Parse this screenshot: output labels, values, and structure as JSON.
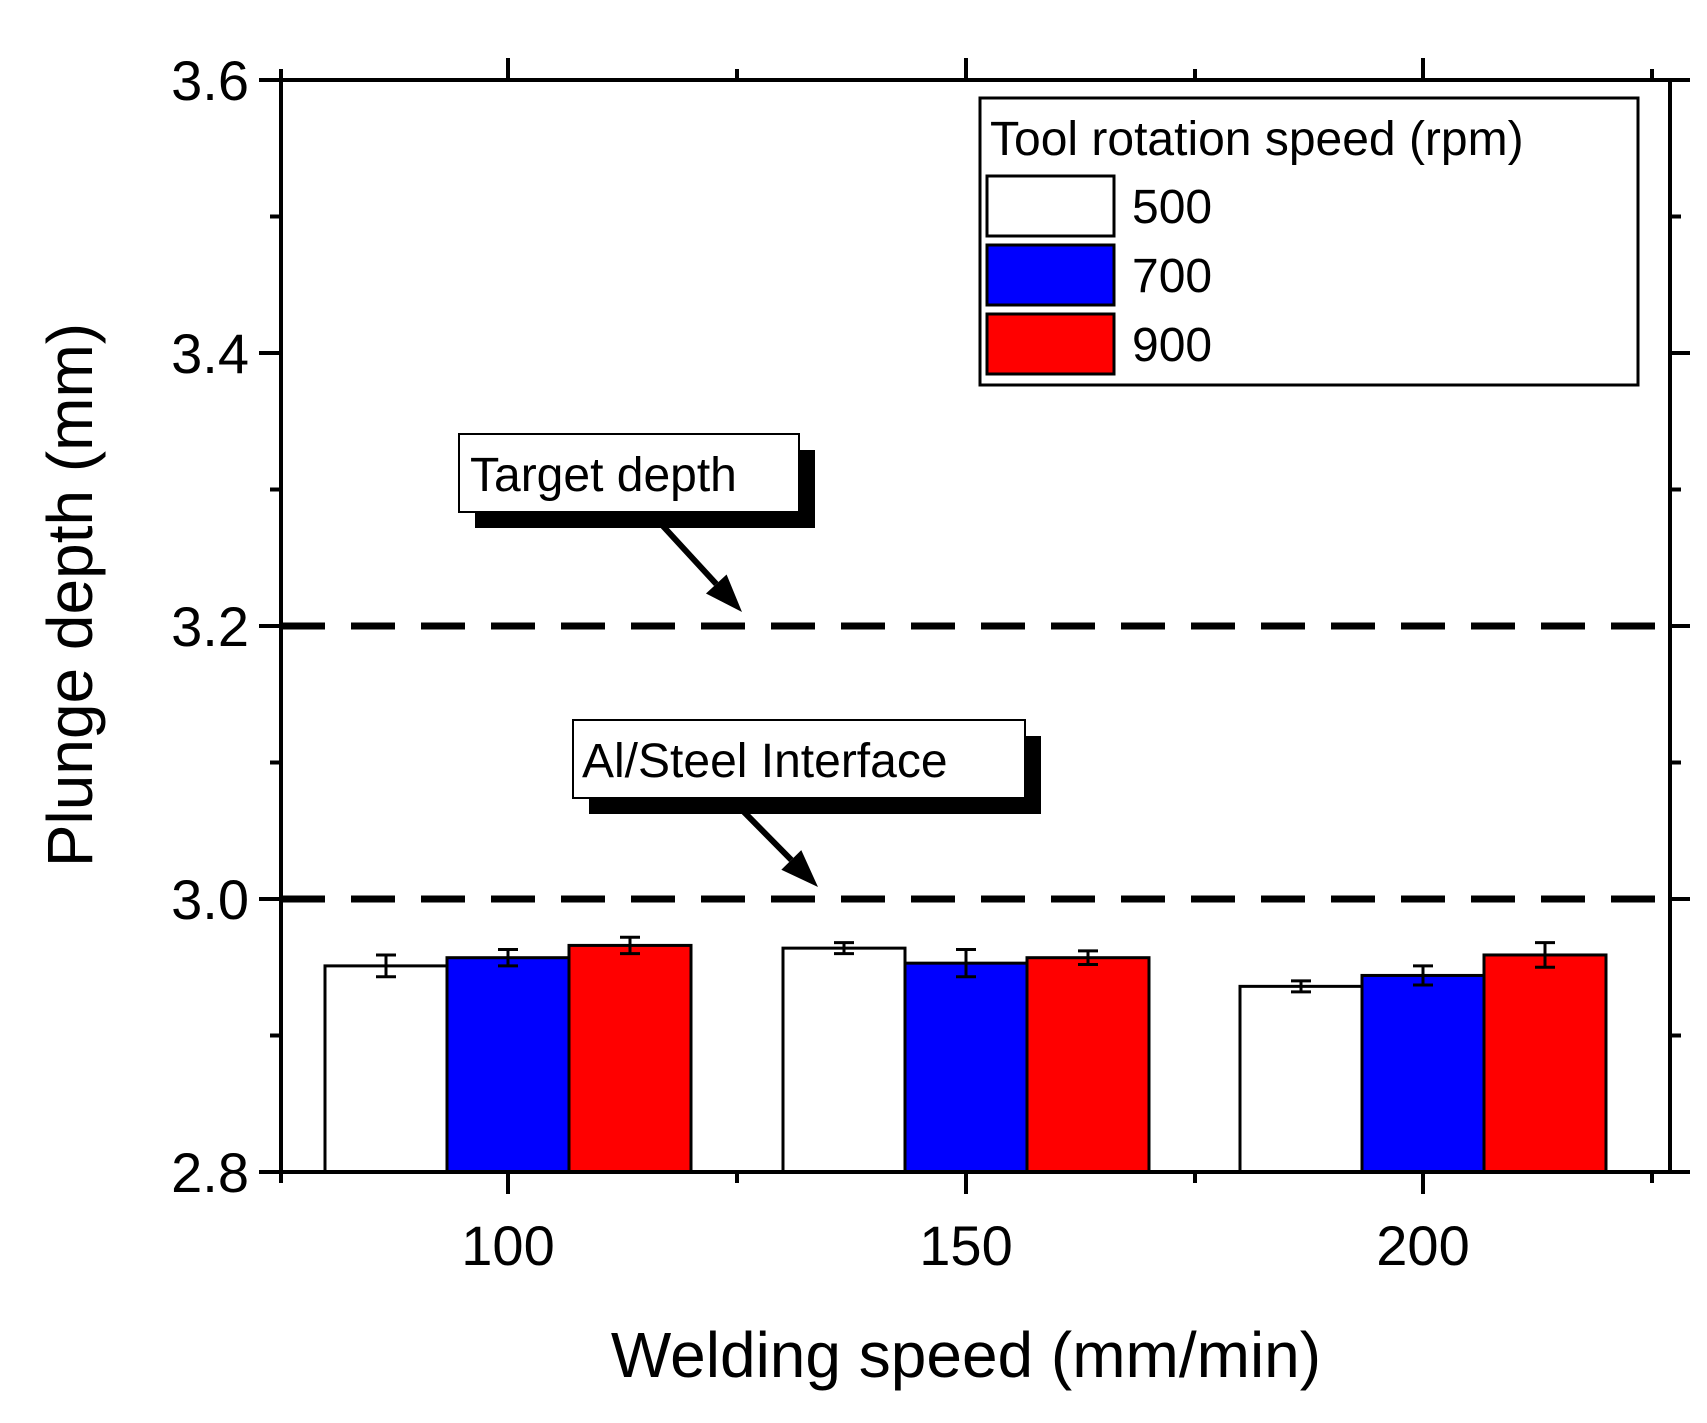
{
  "chart_data": {
    "type": "bar",
    "xlabel": "Welding speed (mm/min)",
    "ylabel": "Plunge depth (mm)",
    "ylim": [
      2.8,
      3.6
    ],
    "yticks": [
      2.8,
      3.0,
      3.2,
      3.4,
      3.6
    ],
    "ytick_labels": [
      "2.8",
      "3.0",
      "3.2",
      "3.4",
      "3.6"
    ],
    "categories": [
      "100",
      "150",
      "200"
    ],
    "legend_title": "Tool rotation speed (rpm)",
    "legend_position": "top-right",
    "series": [
      {
        "name": "500",
        "color": "#ffffff",
        "values": [
          2.951,
          2.964,
          2.936
        ],
        "errors": [
          0.008,
          0.004,
          0.004
        ]
      },
      {
        "name": "700",
        "color": "#0000ff",
        "values": [
          2.957,
          2.953,
          2.944
        ],
        "errors": [
          0.006,
          0.01,
          0.007
        ]
      },
      {
        "name": "900",
        "color": "#ff0000",
        "values": [
          2.966,
          2.957,
          2.959
        ],
        "errors": [
          0.006,
          0.005,
          0.009
        ]
      }
    ],
    "reference_lines": [
      {
        "value": 3.2,
        "label": "Target depth",
        "style": "dashed"
      },
      {
        "value": 3.0,
        "label": "Al/Steel Interface",
        "style": "dashed"
      }
    ]
  }
}
